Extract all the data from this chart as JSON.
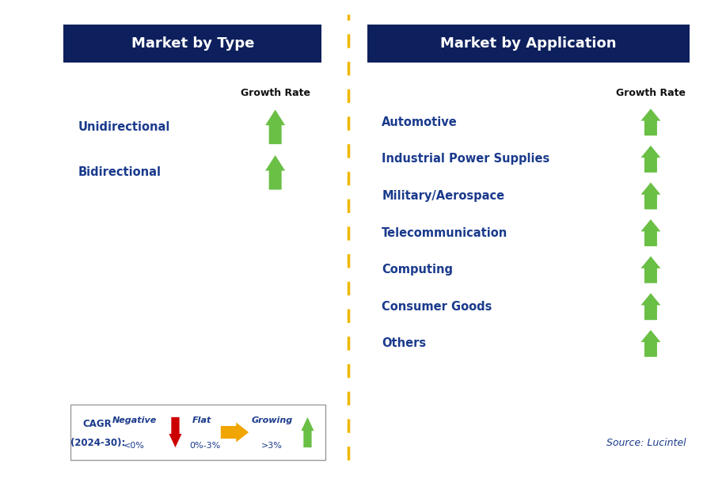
{
  "title_left": "Market by Type",
  "title_right": "Market by Application",
  "title_bg_color": "#0d1f5c",
  "title_text_color": "#ffffff",
  "label_text_color": "#1a3a8c",
  "growth_rate_label": "Growth Rate",
  "type_items": [
    "Unidirectional",
    "Bidirectional"
  ],
  "type_arrow_colors": [
    "#6abf45",
    "#6abf45"
  ],
  "app_items": [
    "Automotive",
    "Industrial Power Supplies",
    "Military/Aerospace",
    "Telecommunication",
    "Computing",
    "Consumer Goods",
    "Others"
  ],
  "app_arrow_colors": [
    "#6abf45",
    "#6abf45",
    "#6abf45",
    "#6abf45",
    "#6abf45",
    "#6abf45",
    "#6abf45"
  ],
  "divider_color": "#f0b800",
  "source_text": "Source: Lucintel",
  "legend_cagr_line1": "CAGR",
  "legend_cagr_line2": "(2024-30):",
  "legend_negative_label": "Negative",
  "legend_negative_value": "<0%",
  "legend_negative_arrow_color": "#cc0000",
  "legend_flat_label": "Flat",
  "legend_flat_value": "0%-3%",
  "legend_flat_arrow_color": "#f0a500",
  "legend_growing_label": "Growing",
  "legend_growing_value": ">3%",
  "legend_growing_arrow_color": "#6abf45",
  "bg_color": "#ffffff",
  "fig_width": 8.93,
  "fig_height": 6.05,
  "dpi": 100
}
